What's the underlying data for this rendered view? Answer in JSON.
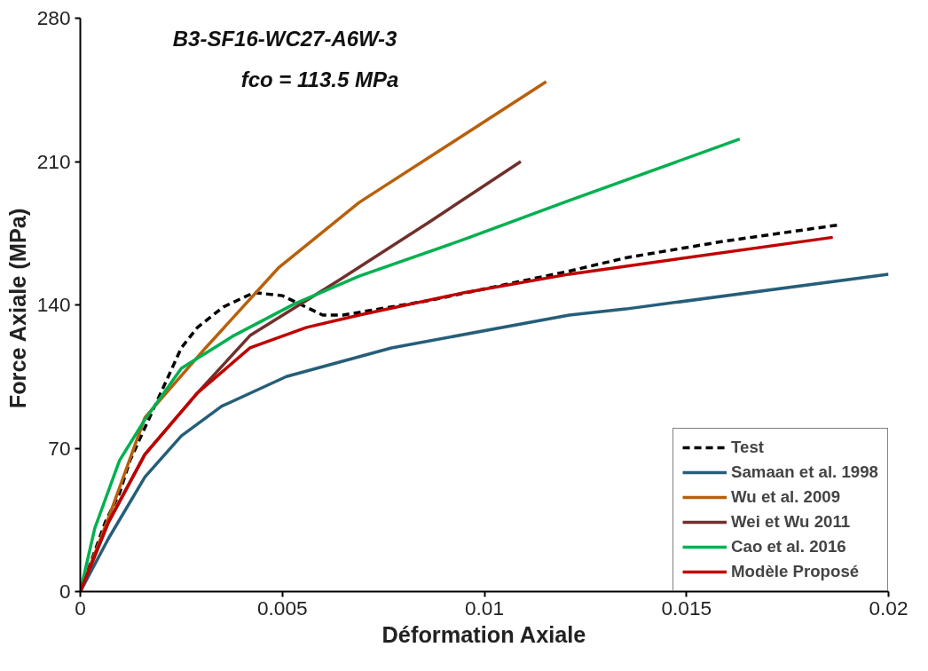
{
  "chart_data": {
    "type": "line",
    "annotations": [
      "B3-SF16-WC27-A6W-3",
      "fco = 113.5  MPa"
    ],
    "xlabel": "Déformation Axiale",
    "ylabel": "Force Axiale  (MPa)",
    "xlim": [
      0,
      0.02
    ],
    "ylim": [
      0,
      280
    ],
    "xticks": [
      0,
      0.005,
      0.01,
      0.015,
      0.02
    ],
    "yticks": [
      0,
      70,
      140,
      210,
      280
    ],
    "grid": false,
    "legend": "bottom right",
    "series": [
      {
        "name": "Test",
        "color": "#000000",
        "line_style": "dashed",
        "x": [
          0,
          0.00062,
          0.00097,
          0.00123,
          0.00176,
          0.0022,
          0.0025,
          0.0029,
          0.00354,
          0.0043,
          0.005,
          0.006,
          0.0065,
          0.0086,
          0.0121,
          0.0135,
          0.0159,
          0.01875
        ],
        "values": [
          0,
          34,
          48,
          64,
          87,
          106,
          119,
          129,
          139,
          146,
          144.5,
          135,
          135,
          142,
          156.5,
          163,
          171,
          179
        ]
      },
      {
        "name": "Samaan et al. 1998",
        "color": "#255e79",
        "x": [
          0,
          0.0007,
          0.0016,
          0.0025,
          0.0035,
          0.0051,
          0.0077,
          0.0121,
          0.0135,
          0.02
        ],
        "values": [
          0,
          26,
          56,
          76,
          90.5,
          105,
          119,
          135,
          138,
          155
        ]
      },
      {
        "name": "Wu et al. 2009",
        "color": "#b8600b",
        "x": [
          0,
          0.0007,
          0.0016,
          0.0031,
          0.0049,
          0.0069,
          0.0091,
          0.01153
        ],
        "values": [
          0,
          36,
          85,
          119,
          158,
          190,
          218,
          249
        ]
      },
      {
        "name": "Wei et Wu 2011",
        "color": "#70302c",
        "x": [
          0,
          0.0007,
          0.0016,
          0.0029,
          0.0042,
          0.0064,
          0.0086,
          0.0109
        ],
        "values": [
          0,
          34,
          67,
          97,
          125,
          152,
          180,
          210
        ]
      },
      {
        "name": "Cao et al. 2016",
        "color": "#00b050",
        "x": [
          0,
          0.00036,
          0.00097,
          0.0016,
          0.0025,
          0.0038,
          0.0053,
          0.0069,
          0.0095,
          0.0121,
          0.01632
        ],
        "values": [
          0,
          31,
          64,
          84,
          109,
          125,
          140.5,
          154,
          172,
          191,
          221
        ]
      },
      {
        "name": "Modèle Proposé",
        "color": "#c00000",
        "x": [
          0,
          0.0007,
          0.0016,
          0.0029,
          0.0042,
          0.0056,
          0.0069,
          0.0095,
          0.0121,
          0.01862
        ],
        "values": [
          0,
          34,
          67,
          97,
          119,
          129,
          135,
          146,
          155,
          173
        ]
      }
    ]
  }
}
